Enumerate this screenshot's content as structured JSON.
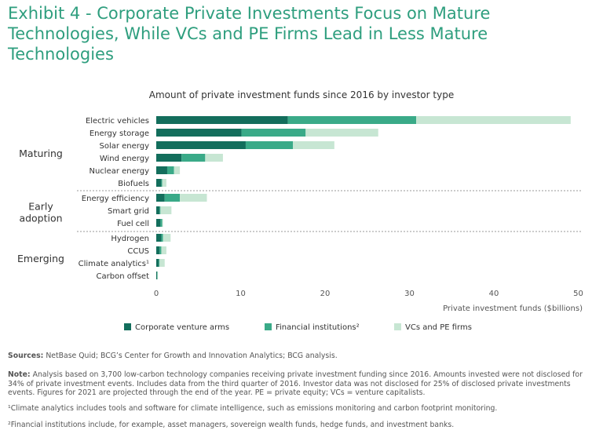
{
  "title": "Exhibit 4 - Corporate Private Investments Focus on Mature Technologies, While VCs and PE Firms Lead in Less Mature Technologies",
  "colors": {
    "title": "#2e9e7e",
    "corporate": "#136e5c",
    "financial": "#3aaa88",
    "vcs": "#c7e6d3"
  },
  "chart_data": {
    "type": "bar",
    "orientation": "horizontal",
    "stacked": true,
    "title": "Amount of private investment funds since 2016 by investor type",
    "xlabel": "Private investment funds ($billions)",
    "xlim": [
      0,
      50
    ],
    "xticks": [
      "0",
      "10",
      "20",
      "30",
      "40",
      "50"
    ],
    "groups": [
      {
        "name": "Maturing",
        "categories": [
          "Electric vehicles",
          "Energy storage",
          "Solar energy",
          "Wind energy",
          "Nuclear energy",
          "Biofuels"
        ]
      },
      {
        "name": "Early adoption",
        "categories": [
          "Energy efficiency",
          "Smart grid",
          "Fuel cell"
        ]
      },
      {
        "name": "Emerging",
        "categories": [
          "Hydrogen",
          "CCUS",
          "Climate analytics¹",
          "Carbon offset"
        ]
      }
    ],
    "categories": [
      "Electric vehicles",
      "Energy storage",
      "Solar energy",
      "Wind energy",
      "Nuclear energy",
      "Biofuels",
      "Energy efficiency",
      "Smart grid",
      "Fuel cell",
      "Hydrogen",
      "CCUS",
      "Climate analytics¹",
      "Carbon offset"
    ],
    "series": [
      {
        "name": "Corporate venture arms",
        "values": [
          15.6,
          10.1,
          10.6,
          3.0,
          1.3,
          0.6,
          1.0,
          0.4,
          0.5,
          0.6,
          0.4,
          0.3,
          0.1
        ]
      },
      {
        "name": "Financial institutions²",
        "values": [
          15.2,
          7.6,
          5.6,
          2.8,
          0.8,
          0.1,
          1.8,
          0.1,
          0.2,
          0.2,
          0.2,
          0.1,
          0.05
        ]
      },
      {
        "name": "VCs and PE firms",
        "values": [
          18.3,
          8.6,
          4.9,
          2.1,
          0.7,
          0.5,
          3.2,
          1.3,
          0.1,
          0.9,
          0.6,
          0.6,
          0.05
        ]
      }
    ],
    "legend_position": "bottom"
  },
  "sources": {
    "sources_label": "Sources:",
    "sources_text": " NetBase Quid; BCG’s Center for Growth and Innovation Analytics; BCG analysis.",
    "note_label": "Note:",
    "note_text": " Analysis based on 3,700 low-carbon technology companies receiving private investment funding since 2016. Amounts invested were not disclosed for 34% of private investment events. Includes data from the third quarter of 2016. Investor data was not disclosed for 25% of disclosed private investments events. Figures for 2021 are projected through the end of the year. PE = private equity; VCs = venture capitalists.",
    "footnote1": "¹Climate analytics includes tools and software for climate intelligence, such as emissions monitoring and carbon footprint monitoring.",
    "footnote2": "²Financial institutions include, for example, asset managers, sovereign wealth funds, hedge funds, and investment banks."
  }
}
